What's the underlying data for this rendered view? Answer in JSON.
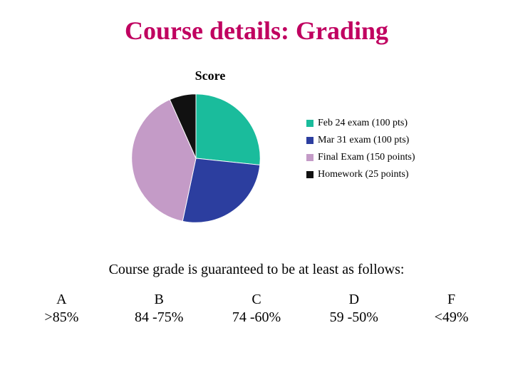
{
  "title": "Course details: Grading",
  "title_color": "#c00060",
  "chart": {
    "type": "pie",
    "title": "Score",
    "title_fontsize": 18,
    "background_color": "#ffffff",
    "legend_position": "right",
    "slices": [
      {
        "label": "Feb 24 exam (100 pts)",
        "value": 100,
        "color": "#1abc9c"
      },
      {
        "label": "Mar 31 exam (100 pts)",
        "value": 100,
        "color": "#2c3e9f"
      },
      {
        "label": "Final Exam (150 points)",
        "value": 150,
        "color": "#c49bc7"
      },
      {
        "label": "Homework (25 points)",
        "value": 25,
        "color": "#111111"
      }
    ],
    "total": 375,
    "start_angle_deg": -90
  },
  "grade_intro": "Course grade is guaranteed to be at least as follows:",
  "grades": [
    {
      "letter": "A",
      "range": ">85%"
    },
    {
      "letter": "B",
      "range": "84 -75%"
    },
    {
      "letter": "C",
      "range": "74 -60%"
    },
    {
      "letter": "D",
      "range": "59 -50%"
    },
    {
      "letter": "F",
      "range": "<49%"
    }
  ]
}
